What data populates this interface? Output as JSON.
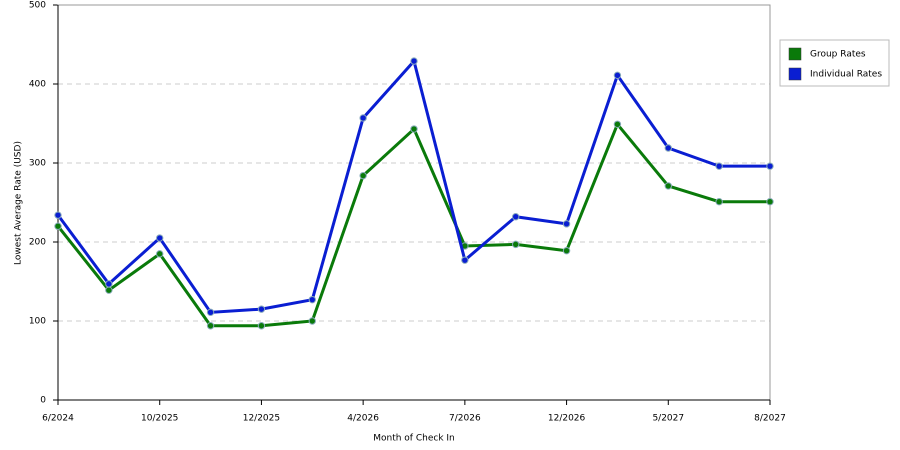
{
  "chart_data": {
    "type": "line",
    "x_label": "Month of Check In",
    "y_label": "Lowest Average Rate (USD)",
    "categories": [
      "6/2024",
      null,
      "10/2025",
      null,
      "12/2025",
      null,
      "4/2026",
      null,
      "7/2026",
      null,
      "12/2026",
      null,
      "5/2027",
      null,
      "8/2027"
    ],
    "series": [
      {
        "name": "Group Rates",
        "color": "#0a7a0a",
        "values": [
          220,
          139,
          185,
          94,
          94,
          100,
          284,
          343,
          195,
          197,
          189,
          349,
          271,
          251,
          251
        ]
      },
      {
        "name": "Individual Rates",
        "color": "#0a1ed2",
        "values": [
          234,
          147,
          205,
          111,
          115,
          127,
          357,
          429,
          177,
          232,
          223,
          411,
          319,
          296,
          296
        ]
      }
    ],
    "ylim": [
      0,
      500
    ],
    "yticks": [
      0,
      100,
      200,
      300,
      400,
      500
    ],
    "grid": true,
    "legend": "right"
  }
}
